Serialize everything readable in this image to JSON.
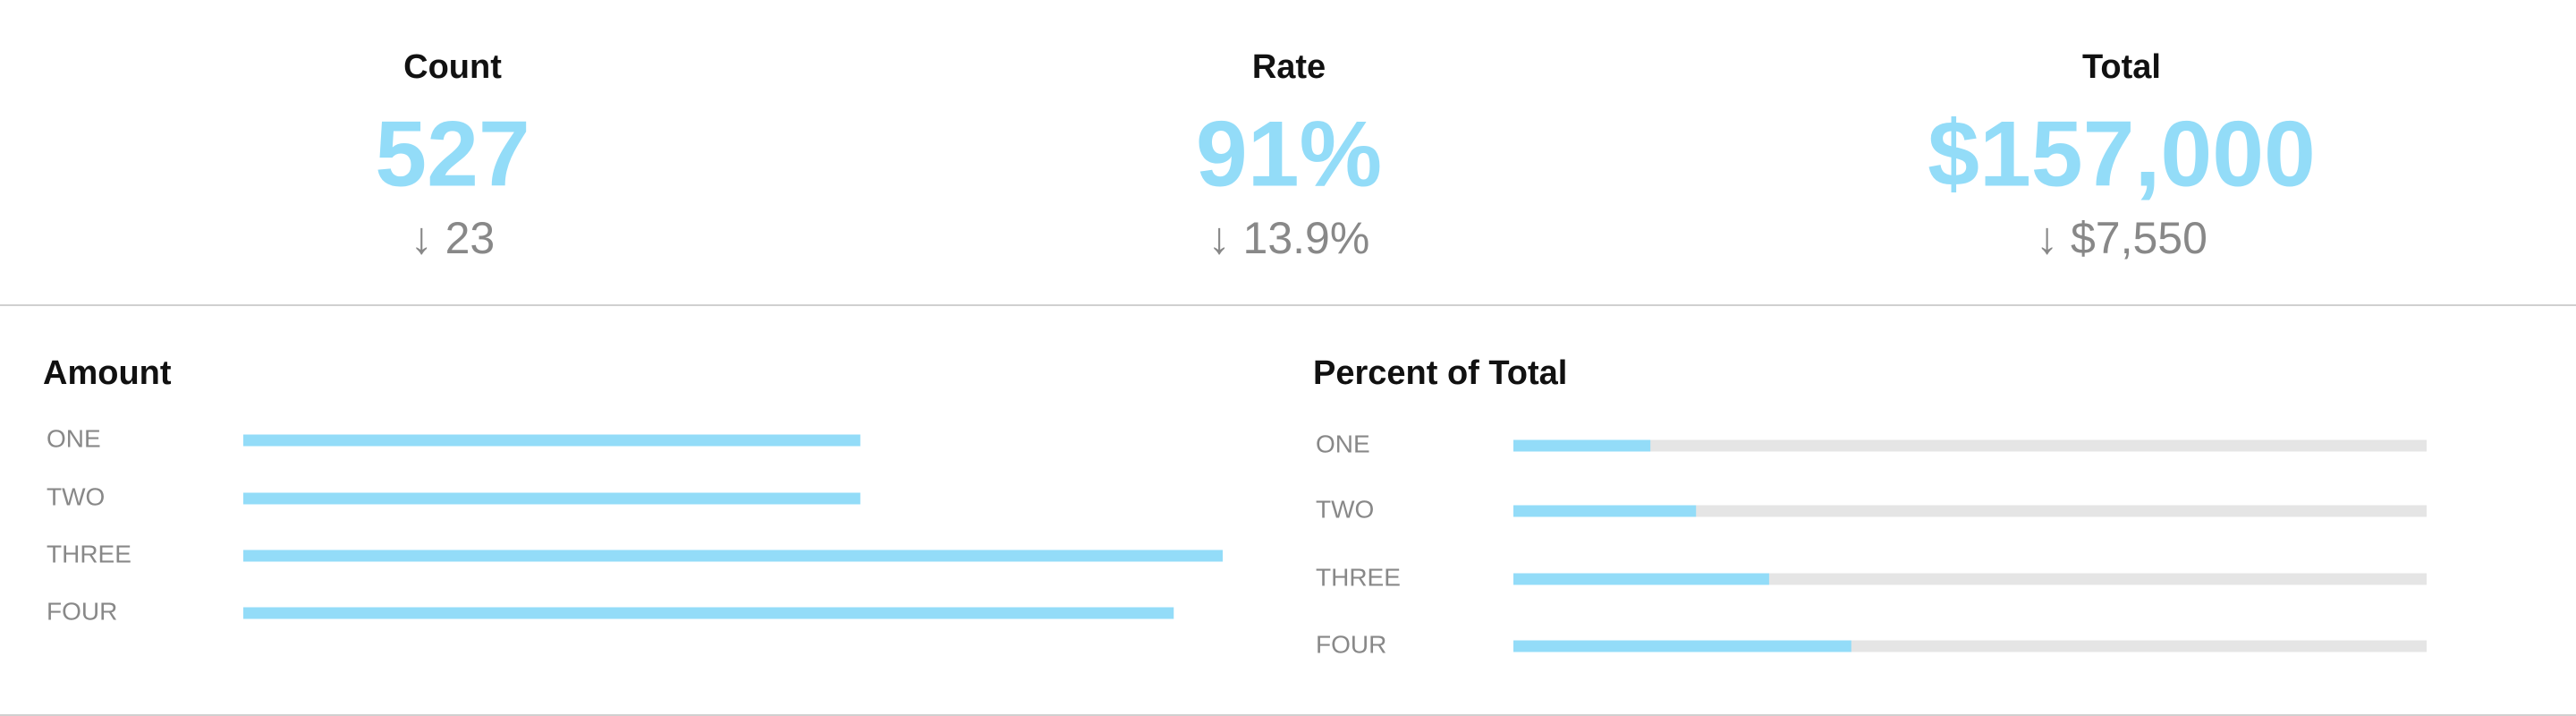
{
  "kpis": [
    {
      "title": "Count",
      "value": "527",
      "delta": "↓ 23"
    },
    {
      "title": "Rate",
      "value": "91%",
      "delta": "↓ 13.9%"
    },
    {
      "title": "Total",
      "value": "$157,000",
      "delta": "↓ $7,550"
    }
  ],
  "chart_data": [
    {
      "type": "bar",
      "title": "Amount",
      "categories": [
        "ONE",
        "TWO",
        "THREE",
        "FOUR"
      ],
      "values": [
        63,
        63,
        100,
        95
      ],
      "color": "#93dcf8"
    },
    {
      "type": "progress",
      "title": "Percent of Total",
      "categories": [
        "ONE",
        "TWO",
        "THREE",
        "FOUR"
      ],
      "values": [
        15,
        20,
        28,
        37
      ],
      "xlim": [
        0,
        100
      ],
      "color": "#93dcf8",
      "track_color": "#e5e5e5"
    }
  ]
}
